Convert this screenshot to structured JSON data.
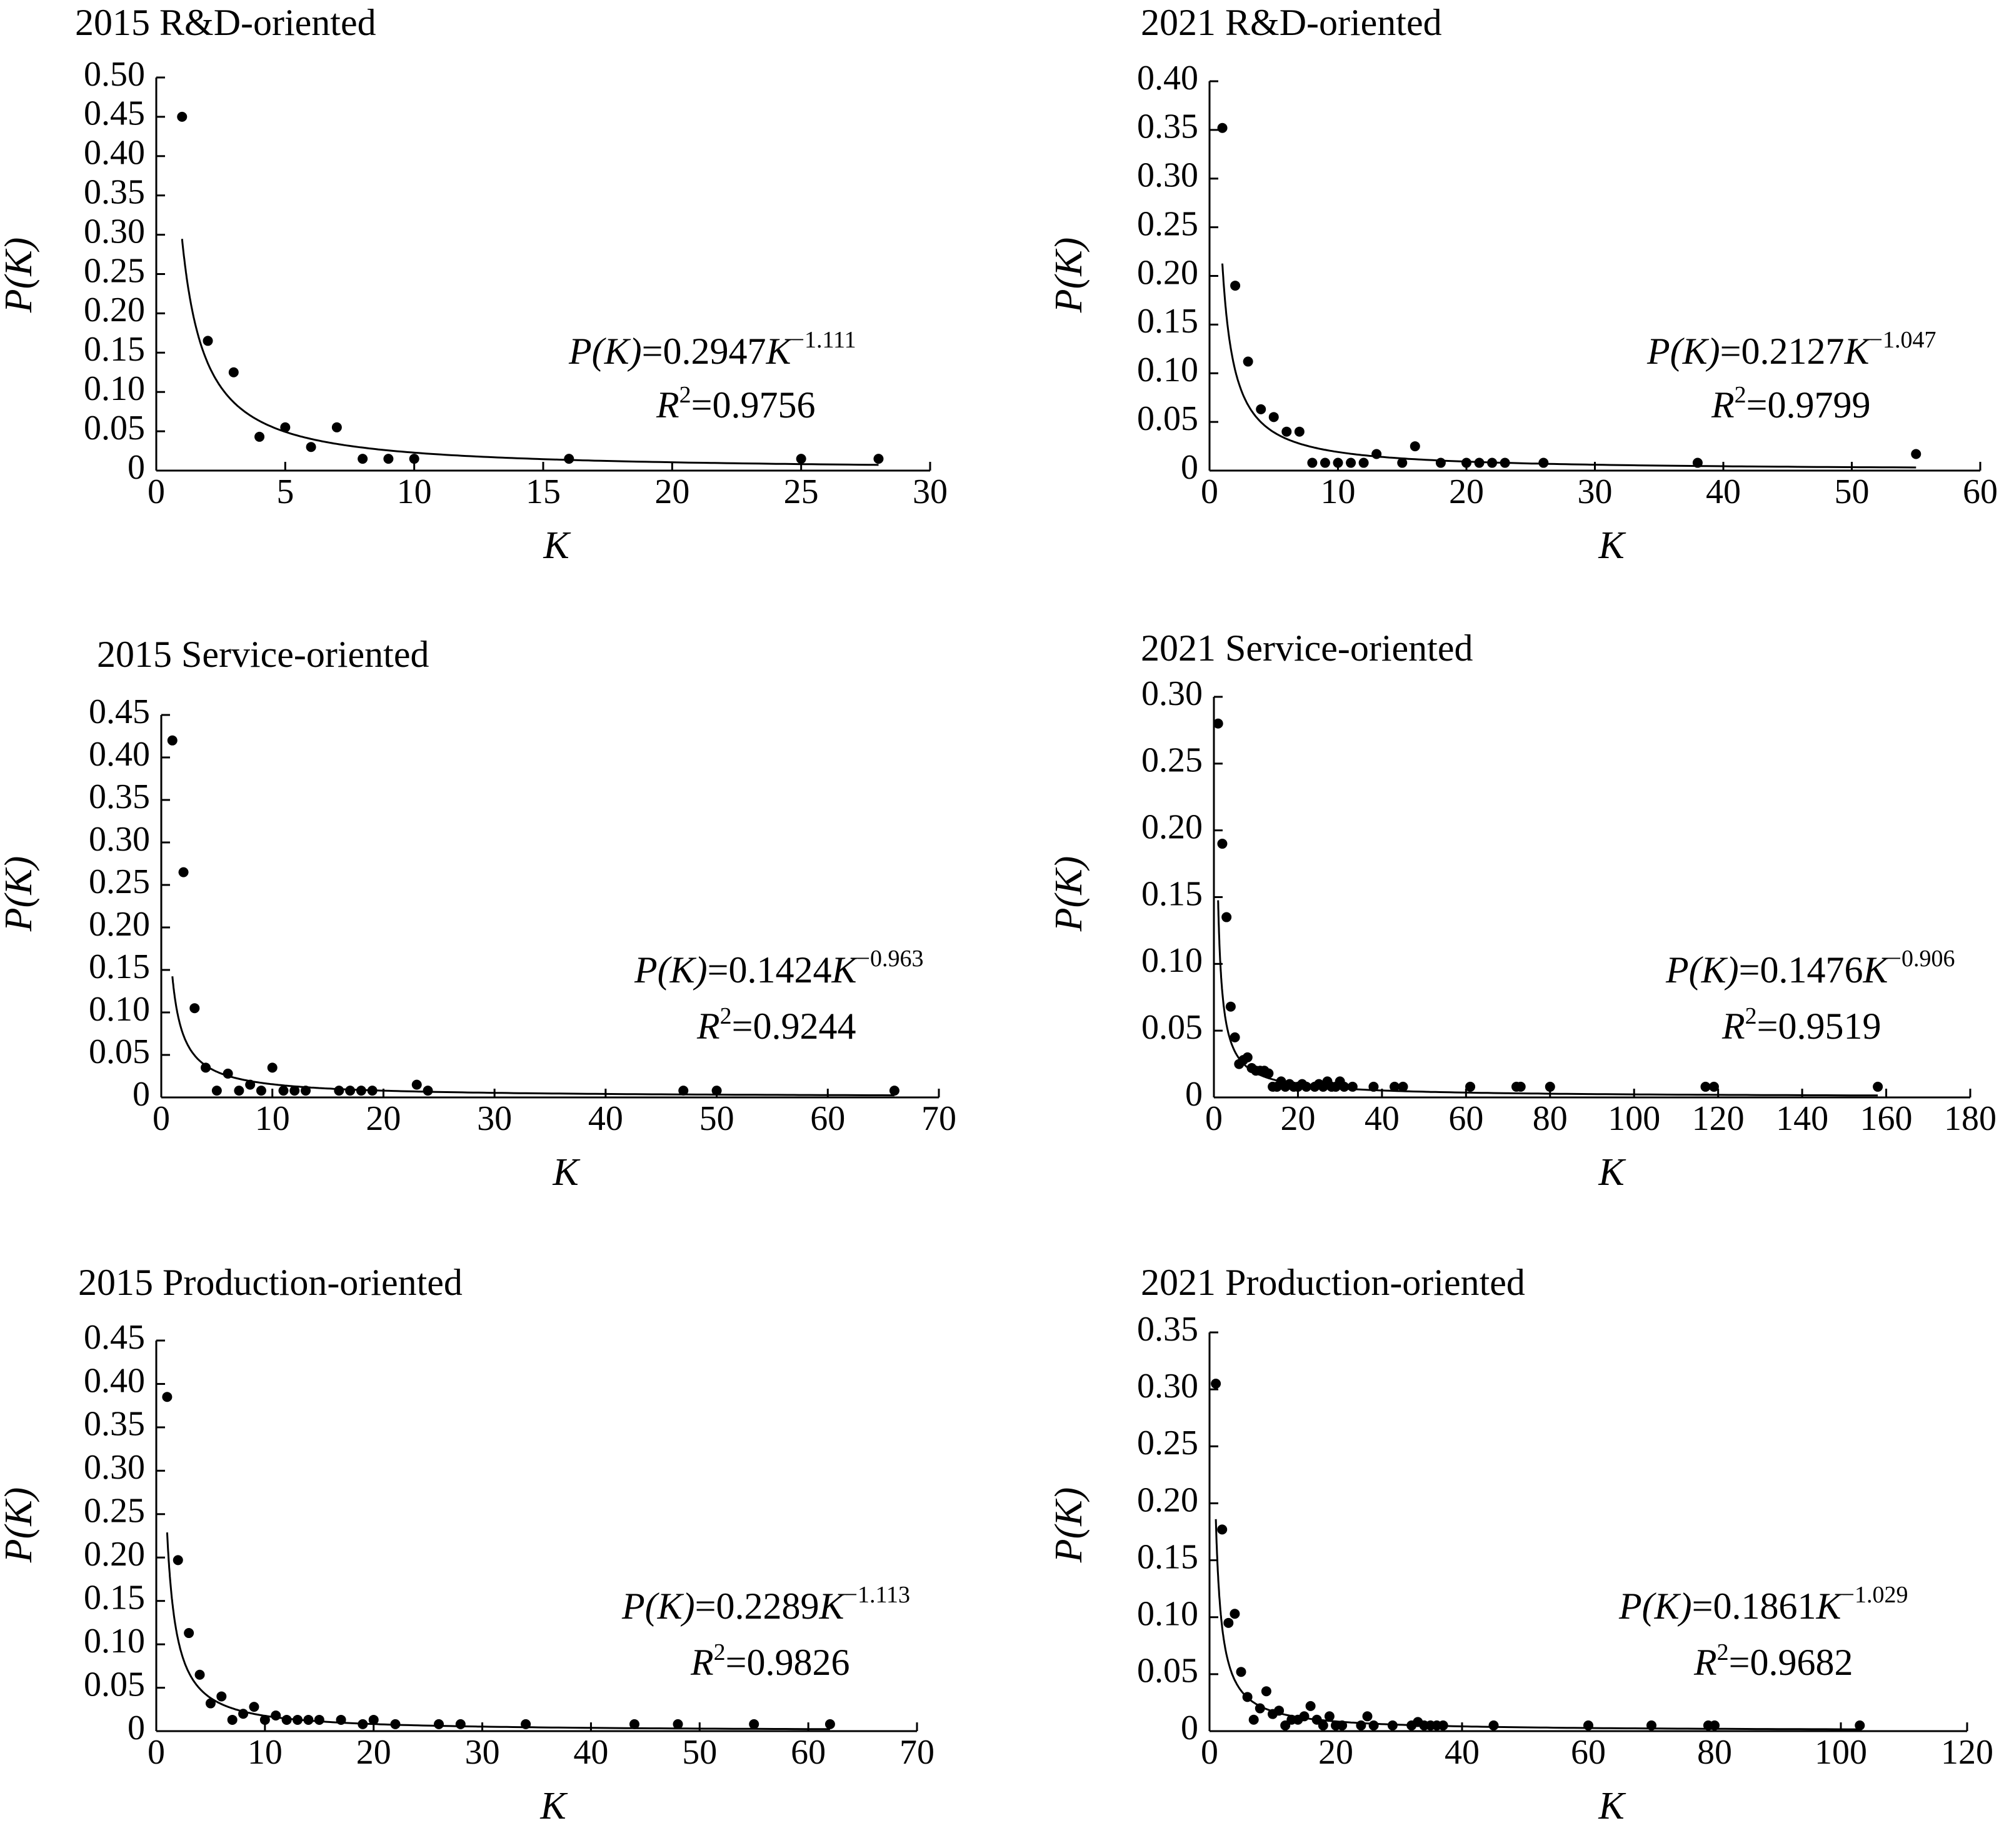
{
  "colors": {
    "ink": "#000000",
    "background": "#ffffff"
  },
  "chart_data": [
    {
      "type": "scatter",
      "title": "2015 R&D-oriented",
      "xlabel": "K",
      "ylabel": "P(K)",
      "xlim": [
        0,
        30
      ],
      "ylim": [
        0,
        0.5
      ],
      "xticks": [
        0,
        5,
        10,
        15,
        20,
        25,
        30
      ],
      "xtick_labels": [
        "0",
        "5",
        "10",
        "15",
        "20",
        "25",
        "30"
      ],
      "yticks": [
        0,
        0.05,
        0.1,
        0.15,
        0.2,
        0.25,
        0.3,
        0.35,
        0.4,
        0.45,
        0.5
      ],
      "ytick_labels": [
        "0",
        "0.05",
        "0.10",
        "0.15",
        "0.20",
        "0.25",
        "0.30",
        "0.35",
        "0.40",
        "0.45",
        "0.50"
      ],
      "points": [
        [
          1,
          0.45
        ],
        [
          2,
          0.165
        ],
        [
          3,
          0.125
        ],
        [
          4,
          0.043
        ],
        [
          5,
          0.055
        ],
        [
          6,
          0.03
        ],
        [
          7,
          0.055
        ],
        [
          8,
          0.015
        ],
        [
          9,
          0.015
        ],
        [
          10,
          0.015
        ],
        [
          16,
          0.015
        ],
        [
          25,
          0.015
        ],
        [
          28,
          0.015
        ]
      ],
      "fit": {
        "a": 0.2947,
        "b": 1.111,
        "xmin": 1,
        "xmax": 28
      },
      "equation": {
        "lhs_italic": "P(K)",
        "middle": "=0.2947",
        "var": "K",
        "exponent": "−1.111"
      },
      "r2": {
        "symbol": "R",
        "sup": "2",
        "value": "=0.9756"
      }
    },
    {
      "type": "scatter",
      "title": "2021 R&D-oriented",
      "xlabel": "K",
      "ylabel": "P(K)",
      "xlim": [
        0,
        60
      ],
      "ylim": [
        0,
        0.4
      ],
      "xticks": [
        0,
        10,
        20,
        30,
        40,
        50,
        60
      ],
      "xtick_labels": [
        "0",
        "10",
        "20",
        "30",
        "40",
        "50",
        "60"
      ],
      "yticks": [
        0,
        0.05,
        0.1,
        0.15,
        0.2,
        0.25,
        0.3,
        0.35,
        0.4
      ],
      "ytick_labels": [
        "0",
        "0.05",
        "0.10",
        "0.15",
        "0.20",
        "0.25",
        "0.30",
        "0.35",
        "0.40"
      ],
      "points": [
        [
          1,
          0.352
        ],
        [
          2,
          0.19
        ],
        [
          3,
          0.112
        ],
        [
          4,
          0.063
        ],
        [
          5,
          0.055
        ],
        [
          6,
          0.04
        ],
        [
          7,
          0.04
        ],
        [
          8,
          0.008
        ],
        [
          9,
          0.008
        ],
        [
          10,
          0.008
        ],
        [
          11,
          0.008
        ],
        [
          12,
          0.008
        ],
        [
          13,
          0.017
        ],
        [
          15,
          0.008
        ],
        [
          16,
          0.025
        ],
        [
          18,
          0.008
        ],
        [
          20,
          0.008
        ],
        [
          21,
          0.008
        ],
        [
          22,
          0.008
        ],
        [
          23,
          0.008
        ],
        [
          26,
          0.008
        ],
        [
          38,
          0.008
        ],
        [
          55,
          0.017
        ]
      ],
      "fit": {
        "a": 0.2127,
        "b": 1.047,
        "xmin": 1,
        "xmax": 55
      },
      "equation": {
        "lhs_italic": "P(K)",
        "middle": "=0.2127",
        "var": "K",
        "exponent": "−1.047"
      },
      "r2": {
        "symbol": "R",
        "sup": "2",
        "value": "=0.9799"
      }
    },
    {
      "type": "scatter",
      "title": "2015 Service-oriented",
      "xlabel": "K",
      "ylabel": "P(K)",
      "xlim": [
        0,
        70
      ],
      "ylim": [
        0,
        0.45
      ],
      "xticks": [
        0,
        10,
        20,
        30,
        40,
        50,
        60,
        70
      ],
      "xtick_labels": [
        "0",
        "10",
        "20",
        "30",
        "40",
        "50",
        "60",
        "70"
      ],
      "yticks": [
        0,
        0.05,
        0.1,
        0.15,
        0.2,
        0.25,
        0.3,
        0.35,
        0.4,
        0.45
      ],
      "ytick_labels": [
        "0",
        "0.05",
        "0.10",
        "0.15",
        "0.20",
        "0.25",
        "0.30",
        "0.35",
        "0.40",
        "0.45"
      ],
      "points": [
        [
          1,
          0.42
        ],
        [
          2,
          0.265
        ],
        [
          3,
          0.105
        ],
        [
          4,
          0.035
        ],
        [
          5,
          0.008
        ],
        [
          6,
          0.028
        ],
        [
          7,
          0.008
        ],
        [
          8,
          0.015
        ],
        [
          9,
          0.008
        ],
        [
          10,
          0.035
        ],
        [
          11,
          0.008
        ],
        [
          12,
          0.008
        ],
        [
          13,
          0.008
        ],
        [
          16,
          0.008
        ],
        [
          17,
          0.008
        ],
        [
          18,
          0.008
        ],
        [
          19,
          0.008
        ],
        [
          23,
          0.015
        ],
        [
          24,
          0.008
        ],
        [
          47,
          0.008
        ],
        [
          50,
          0.008
        ],
        [
          66,
          0.008
        ]
      ],
      "fit": {
        "a": 0.1424,
        "b": 0.963,
        "xmin": 1,
        "xmax": 66
      },
      "equation": {
        "lhs_italic": "P(K)",
        "middle": "=0.1424",
        "var": "K",
        "exponent": "−0.963"
      },
      "r2": {
        "symbol": "R",
        "sup": "2",
        "value": "=0.9244"
      }
    },
    {
      "type": "scatter",
      "title": "2021 Service-oriented",
      "xlabel": "K",
      "ylabel": "P(K)",
      "xlim": [
        0,
        180
      ],
      "ylim": [
        0,
        0.3
      ],
      "xticks": [
        0,
        20,
        40,
        60,
        80,
        100,
        120,
        140,
        160,
        180
      ],
      "xtick_labels": [
        "0",
        "20",
        "40",
        "60",
        "80",
        "100",
        "120",
        "140",
        "160",
        "180"
      ],
      "yticks": [
        0,
        0.05,
        0.1,
        0.15,
        0.2,
        0.25,
        0.3
      ],
      "ytick_labels": [
        "0",
        "0.05",
        "0.10",
        "0.15",
        "0.20",
        "0.25",
        "0.30"
      ],
      "points": [
        [
          1,
          0.28
        ],
        [
          2,
          0.19
        ],
        [
          3,
          0.135
        ],
        [
          4,
          0.068
        ],
        [
          5,
          0.045
        ],
        [
          6,
          0.025
        ],
        [
          7,
          0.028
        ],
        [
          8,
          0.03
        ],
        [
          9,
          0.022
        ],
        [
          10,
          0.02
        ],
        [
          11,
          0.02
        ],
        [
          12,
          0.02
        ],
        [
          13,
          0.018
        ],
        [
          14,
          0.008
        ],
        [
          15,
          0.008
        ],
        [
          16,
          0.012
        ],
        [
          17,
          0.008
        ],
        [
          18,
          0.01
        ],
        [
          19,
          0.008
        ],
        [
          20,
          0.008
        ],
        [
          21,
          0.01
        ],
        [
          22,
          0.008
        ],
        [
          24,
          0.008
        ],
        [
          25,
          0.01
        ],
        [
          26,
          0.008
        ],
        [
          27,
          0.012
        ],
        [
          28,
          0.008
        ],
        [
          29,
          0.008
        ],
        [
          30,
          0.012
        ],
        [
          31,
          0.008
        ],
        [
          33,
          0.008
        ],
        [
          38,
          0.008
        ],
        [
          43,
          0.008
        ],
        [
          45,
          0.008
        ],
        [
          61,
          0.008
        ],
        [
          72,
          0.008
        ],
        [
          73,
          0.008
        ],
        [
          80,
          0.008
        ],
        [
          117,
          0.008
        ],
        [
          119,
          0.008
        ],
        [
          158,
          0.008
        ]
      ],
      "fit": {
        "a": 0.1476,
        "b": 0.906,
        "xmin": 1,
        "xmax": 158
      },
      "equation": {
        "lhs_italic": "P(K)",
        "middle": "=0.1476",
        "var": "K",
        "exponent": "−0.906"
      },
      "r2": {
        "symbol": "R",
        "sup": "2",
        "value": "=0.9519"
      }
    },
    {
      "type": "scatter",
      "title": "2015 Production-oriented",
      "xlabel": "K",
      "ylabel": "P(K)",
      "xlim": [
        0,
        70
      ],
      "ylim": [
        0,
        0.45
      ],
      "xticks": [
        0,
        10,
        20,
        30,
        40,
        50,
        60,
        70
      ],
      "xtick_labels": [
        "0",
        "10",
        "20",
        "30",
        "40",
        "50",
        "60",
        "70"
      ],
      "yticks": [
        0,
        0.05,
        0.1,
        0.15,
        0.2,
        0.25,
        0.3,
        0.35,
        0.4,
        0.45
      ],
      "ytick_labels": [
        "0",
        "0.05",
        "0.10",
        "0.15",
        "0.20",
        "0.25",
        "0.30",
        "0.35",
        "0.40",
        "0.45"
      ],
      "points": [
        [
          1,
          0.385
        ],
        [
          2,
          0.197
        ],
        [
          3,
          0.113
        ],
        [
          4,
          0.065
        ],
        [
          5,
          0.032
        ],
        [
          6,
          0.04
        ],
        [
          7,
          0.013
        ],
        [
          8,
          0.02
        ],
        [
          9,
          0.028
        ],
        [
          10,
          0.013
        ],
        [
          11,
          0.018
        ],
        [
          12,
          0.013
        ],
        [
          13,
          0.013
        ],
        [
          14,
          0.013
        ],
        [
          15,
          0.013
        ],
        [
          17,
          0.013
        ],
        [
          19,
          0.008
        ],
        [
          20,
          0.013
        ],
        [
          22,
          0.008
        ],
        [
          26,
          0.008
        ],
        [
          28,
          0.008
        ],
        [
          34,
          0.008
        ],
        [
          44,
          0.008
        ],
        [
          48,
          0.008
        ],
        [
          55,
          0.008
        ],
        [
          62,
          0.008
        ]
      ],
      "fit": {
        "a": 0.2289,
        "b": 1.113,
        "xmin": 1,
        "xmax": 62
      },
      "equation": {
        "lhs_italic": "P(K)",
        "middle": "=0.2289",
        "var": "K",
        "exponent": "−1.113"
      },
      "r2": {
        "symbol": "R",
        "sup": "2",
        "value": "=0.9826"
      }
    },
    {
      "type": "scatter",
      "title": "2021 Production-oriented",
      "xlabel": "K",
      "ylabel": "P(K)",
      "xlim": [
        0,
        120
      ],
      "ylim": [
        0,
        0.35
      ],
      "xticks": [
        0,
        20,
        40,
        60,
        80,
        100,
        120
      ],
      "xtick_labels": [
        "0",
        "20",
        "40",
        "60",
        "80",
        "100",
        "120"
      ],
      "yticks": [
        0,
        0.05,
        0.1,
        0.15,
        0.2,
        0.25,
        0.3,
        0.35
      ],
      "ytick_labels": [
        "0",
        "0.05",
        "0.10",
        "0.15",
        "0.20",
        "0.25",
        "0.30",
        "0.35"
      ],
      "points": [
        [
          1,
          0.305
        ],
        [
          2,
          0.177
        ],
        [
          3,
          0.095
        ],
        [
          4,
          0.103
        ],
        [
          5,
          0.052
        ],
        [
          6,
          0.03
        ],
        [
          7,
          0.01
        ],
        [
          8,
          0.02
        ],
        [
          9,
          0.035
        ],
        [
          10,
          0.015
        ],
        [
          11,
          0.018
        ],
        [
          12,
          0.005
        ],
        [
          13,
          0.01
        ],
        [
          14,
          0.01
        ],
        [
          15,
          0.013
        ],
        [
          16,
          0.022
        ],
        [
          17,
          0.01
        ],
        [
          18,
          0.005
        ],
        [
          19,
          0.013
        ],
        [
          20,
          0.005
        ],
        [
          21,
          0.005
        ],
        [
          24,
          0.005
        ],
        [
          25,
          0.013
        ],
        [
          26,
          0.005
        ],
        [
          29,
          0.005
        ],
        [
          32,
          0.005
        ],
        [
          33,
          0.008
        ],
        [
          34,
          0.005
        ],
        [
          35,
          0.005
        ],
        [
          36,
          0.005
        ],
        [
          37,
          0.005
        ],
        [
          45,
          0.005
        ],
        [
          60,
          0.005
        ],
        [
          70,
          0.005
        ],
        [
          79,
          0.005
        ],
        [
          80,
          0.005
        ],
        [
          103,
          0.005
        ]
      ],
      "fit": {
        "a": 0.1861,
        "b": 1.029,
        "xmin": 1,
        "xmax": 103
      },
      "equation": {
        "lhs_italic": "P(K)",
        "middle": "=0.1861",
        "var": "K",
        "exponent": "−1.029"
      },
      "r2": {
        "symbol": "R",
        "sup": "2",
        "value": "=0.9682"
      }
    }
  ]
}
